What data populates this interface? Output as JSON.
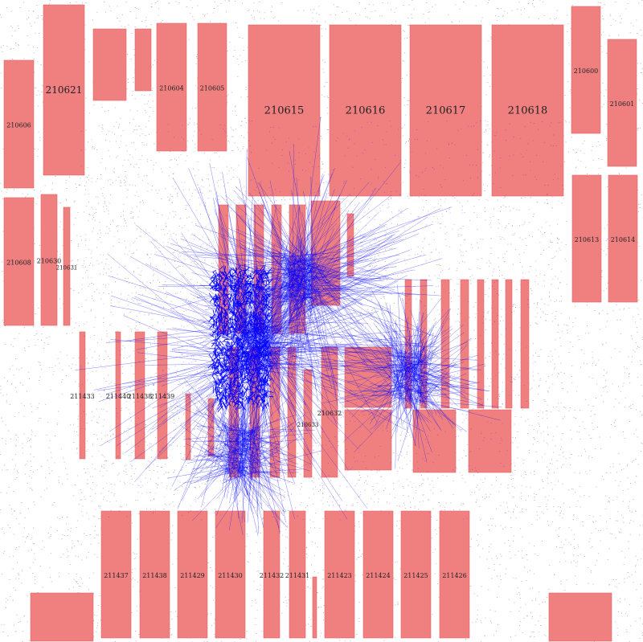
{
  "colors": {
    "block_fill": "#f08080",
    "block_stroke": "#e06666",
    "net": "#0000ff",
    "cell": "#777777",
    "background": "#ffffff"
  },
  "blocks": [
    {
      "label": "210621",
      "size": "medium"
    },
    {
      "label": "210606",
      "size": "small"
    },
    {
      "label": "210604",
      "size": "small"
    },
    {
      "label": "210605",
      "size": "small"
    },
    {
      "label": "210615",
      "size": "large"
    },
    {
      "label": "210616",
      "size": "large"
    },
    {
      "label": "210617",
      "size": "large"
    },
    {
      "label": "210618",
      "size": "large"
    },
    {
      "label": "210600",
      "size": "small"
    },
    {
      "label": "210601",
      "size": "small"
    },
    {
      "label": "210608",
      "size": "small"
    },
    {
      "label": "210630",
      "size": "small"
    },
    {
      "label": "210631",
      "size": "tiny"
    },
    {
      "label": "210613",
      "size": "small"
    },
    {
      "label": "210614",
      "size": "small"
    },
    {
      "label": "211433",
      "size": "small"
    },
    {
      "label": "211440",
      "size": "small"
    },
    {
      "label": "211438",
      "size": "small"
    },
    {
      "label": "211439",
      "size": "small"
    },
    {
      "label": "210632",
      "size": "small"
    },
    {
      "label": "210633",
      "size": "tiny"
    },
    {
      "label": "211437",
      "size": "small"
    },
    {
      "label": "211438",
      "size": "small"
    },
    {
      "label": "211429",
      "size": "small"
    },
    {
      "label": "211430",
      "size": "small"
    },
    {
      "label": "211432",
      "size": "small"
    },
    {
      "label": "211431",
      "size": "small"
    },
    {
      "label": "211423",
      "size": "small"
    },
    {
      "label": "211424",
      "size": "small"
    },
    {
      "label": "211425",
      "size": "small"
    },
    {
      "label": "211426",
      "size": "small"
    }
  ]
}
